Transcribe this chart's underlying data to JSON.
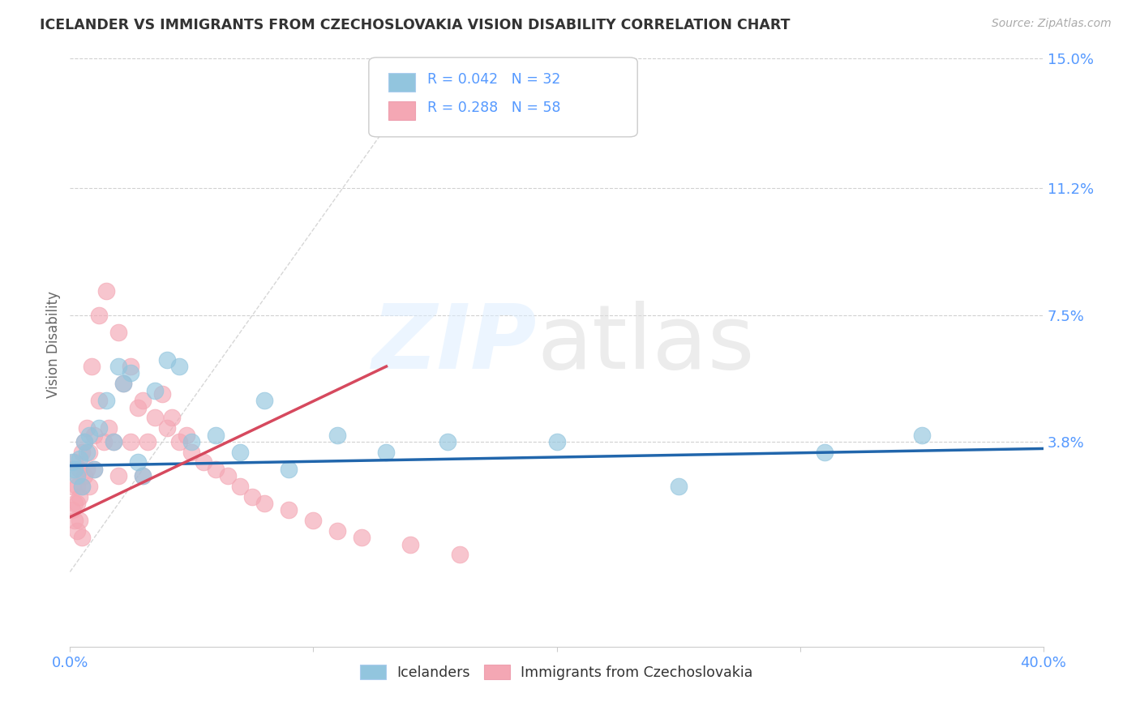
{
  "title": "ICELANDER VS IMMIGRANTS FROM CZECHOSLOVAKIA VISION DISABILITY CORRELATION CHART",
  "source": "Source: ZipAtlas.com",
  "ylabel": "Vision Disability",
  "xlim": [
    0.0,
    0.4
  ],
  "ylim": [
    -0.022,
    0.155
  ],
  "blue_color": "#92c5de",
  "pink_color": "#f4a7b4",
  "blue_line_color": "#2166ac",
  "pink_line_color": "#d6495e",
  "diagonal_color": "#cccccc",
  "grid_color": "#cccccc",
  "title_color": "#333333",
  "tick_color": "#5599ff",
  "legend_border_color": "#cccccc",
  "icelanders_R": 0.042,
  "icelanders_N": 32,
  "czecho_R": 0.288,
  "czecho_N": 58,
  "ice_x": [
    0.001,
    0.002,
    0.003,
    0.004,
    0.005,
    0.006,
    0.007,
    0.008,
    0.01,
    0.012,
    0.015,
    0.018,
    0.02,
    0.022,
    0.025,
    0.028,
    0.03,
    0.035,
    0.04,
    0.045,
    0.05,
    0.06,
    0.07,
    0.08,
    0.09,
    0.11,
    0.13,
    0.155,
    0.2,
    0.25,
    0.31,
    0.35
  ],
  "ice_y": [
    0.032,
    0.03,
    0.028,
    0.033,
    0.025,
    0.038,
    0.035,
    0.04,
    0.03,
    0.042,
    0.05,
    0.038,
    0.06,
    0.055,
    0.058,
    0.032,
    0.028,
    0.053,
    0.062,
    0.06,
    0.038,
    0.04,
    0.035,
    0.05,
    0.03,
    0.04,
    0.035,
    0.038,
    0.038,
    0.025,
    0.035,
    0.04
  ],
  "cze_x": [
    0.001,
    0.001,
    0.001,
    0.002,
    0.002,
    0.002,
    0.003,
    0.003,
    0.003,
    0.004,
    0.004,
    0.004,
    0.005,
    0.005,
    0.005,
    0.006,
    0.006,
    0.007,
    0.007,
    0.008,
    0.008,
    0.009,
    0.01,
    0.01,
    0.012,
    0.012,
    0.014,
    0.015,
    0.016,
    0.018,
    0.02,
    0.02,
    0.022,
    0.025,
    0.025,
    0.028,
    0.03,
    0.03,
    0.032,
    0.035,
    0.038,
    0.04,
    0.042,
    0.045,
    0.048,
    0.05,
    0.055,
    0.06,
    0.065,
    0.07,
    0.075,
    0.08,
    0.09,
    0.1,
    0.11,
    0.12,
    0.14,
    0.16
  ],
  "cze_y": [
    0.03,
    0.025,
    0.018,
    0.032,
    0.02,
    0.015,
    0.025,
    0.02,
    0.012,
    0.03,
    0.022,
    0.015,
    0.035,
    0.025,
    0.01,
    0.038,
    0.028,
    0.042,
    0.03,
    0.035,
    0.025,
    0.06,
    0.04,
    0.03,
    0.05,
    0.075,
    0.038,
    0.082,
    0.042,
    0.038,
    0.07,
    0.028,
    0.055,
    0.06,
    0.038,
    0.048,
    0.05,
    0.028,
    0.038,
    0.045,
    0.052,
    0.042,
    0.045,
    0.038,
    0.04,
    0.035,
    0.032,
    0.03,
    0.028,
    0.025,
    0.022,
    0.02,
    0.018,
    0.015,
    0.012,
    0.01,
    0.008,
    0.005
  ],
  "blue_trend_x": [
    0.0,
    0.4
  ],
  "blue_trend_y": [
    0.031,
    0.036
  ],
  "pink_trend_x": [
    0.0,
    0.13
  ],
  "pink_trend_y": [
    0.016,
    0.06
  ]
}
